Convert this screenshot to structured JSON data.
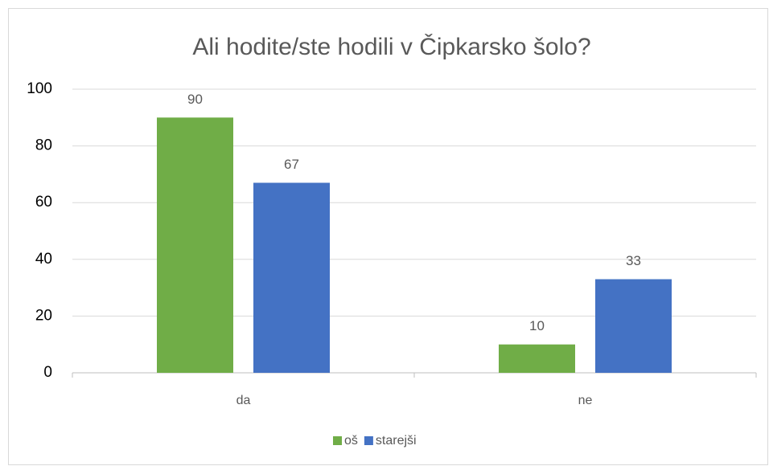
{
  "chart_data": {
    "type": "bar",
    "title": "Ali hodite/ste hodili v Čipkarsko šolo?",
    "categories": [
      "da",
      "ne"
    ],
    "series": [
      {
        "name": "oš",
        "color": "#70ad47",
        "values": [
          90,
          10
        ]
      },
      {
        "name": "starejši",
        "color": "#4472c4",
        "values": [
          67,
          33
        ]
      }
    ],
    "ylim": [
      0,
      100
    ],
    "yticks": [
      0,
      20,
      40,
      60,
      80,
      100
    ],
    "grid": true,
    "legend": "bottom"
  }
}
